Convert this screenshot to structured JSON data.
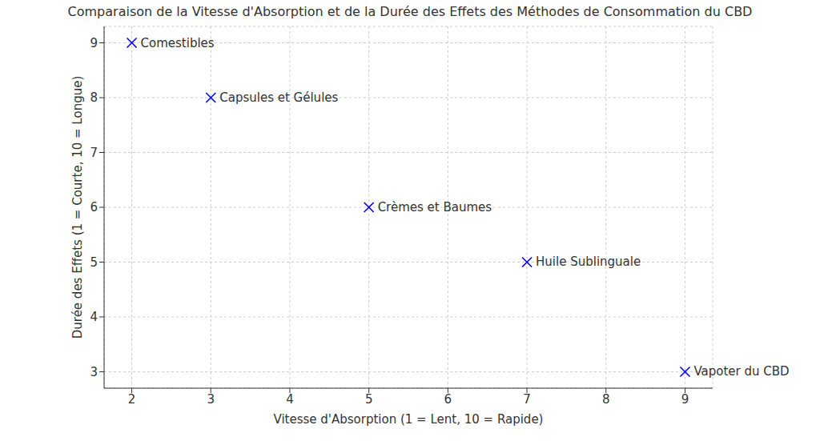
{
  "chart_data": {
    "type": "scatter",
    "title": "Comparaison de la Vitesse d'Absorption et de la Durée des Effets des Méthodes de Consommation du CBD",
    "x_label": "Vitesse d'Absorption (1 = Lent, 10 = Rapide)",
    "y_label": "Durée des Effets (1 = Courte, 10 = Longue)",
    "labels": [
      "Comestibles",
      "Capsules et Gélules",
      "Crèmes et Baumes",
      "Huile Sublinguale",
      "Vapoter du CBD"
    ],
    "x": [
      2,
      3,
      5,
      7,
      9
    ],
    "values": [
      9,
      8,
      6,
      5,
      3
    ],
    "color": "#0000ff",
    "marker": "x",
    "xlim": [
      1.65,
      9.35
    ],
    "ylim": [
      2.7,
      9.3
    ],
    "xticks": [
      2,
      3,
      4,
      5,
      6,
      7,
      8,
      9
    ],
    "yticks": [
      3,
      4,
      5,
      6,
      7,
      8,
      9
    ],
    "grid": true
  }
}
